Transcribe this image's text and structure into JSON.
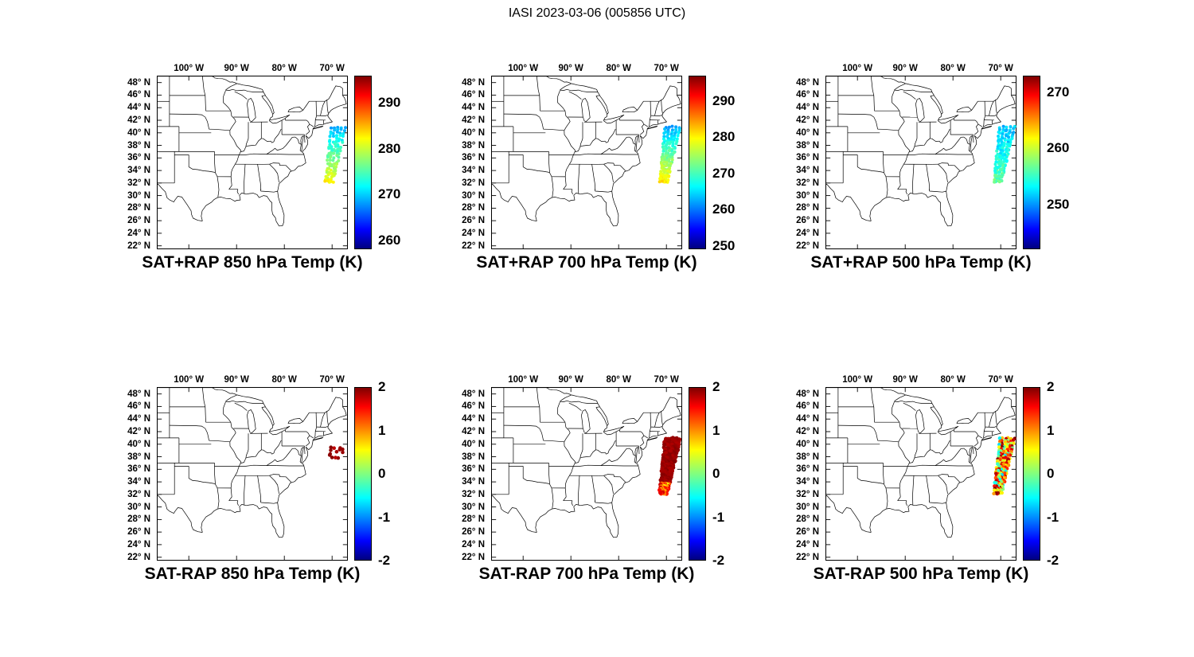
{
  "figure": {
    "title": "IASI 2023-03-06 (005856 UTC)"
  },
  "chart_data": {
    "type": "scatter",
    "title": "IASI 2023-03-06 (005856 UTC)",
    "layout": "2 rows x 3 columns of identical US east-coast map panels, each with a jet colorbar on the right",
    "colormap": "jet",
    "map_extent": {
      "lon_west_degW": 106.7,
      "lon_east_degW": 66.7,
      "lat_south_degN": 21.5,
      "lat_north_degN": 49.1
    },
    "lon_tick_labels": [
      "100° W",
      "90° W",
      "80° W",
      "70° W"
    ],
    "lon_tick_degW": [
      100,
      90,
      80,
      70
    ],
    "lat_tick_labels": [
      "48° N",
      "46° N",
      "44° N",
      "42° N",
      "40° N",
      "38° N",
      "36° N",
      "34° N",
      "32° N",
      "30° N",
      "28° N",
      "26° N",
      "24° N",
      "22° N"
    ],
    "lat_tick_degN": [
      48,
      46,
      44,
      42,
      40,
      38,
      36,
      34,
      32,
      30,
      28,
      26,
      24,
      22
    ],
    "swath": {
      "description": "IASI satellite overpass swath of retrieval points off the US Atlantic coast",
      "top_center_degW_degN": [
        68.7,
        40.9
      ],
      "bottom_center_degW_degN": [
        70.6,
        32.2
      ],
      "halfwidth_top_deg": 1.5,
      "halfwidth_bottom_deg": 0.75,
      "rows": 26,
      "cols": 5
    },
    "panels": [
      {
        "title": "SAT+RAP 850 hPa Temp (K)",
        "row": 0,
        "col": 0,
        "colorbar": {
          "vmin": 258,
          "vmax": 296,
          "ticks": [
            "290",
            "280",
            "270",
            "260"
          ]
        },
        "scatter": {
          "mode": "gradient",
          "value_north": 269.5,
          "value_south": 282,
          "noise": 2.5,
          "keep": 0.78,
          "cols": 5,
          "radius": 2.0,
          "seed": 11
        }
      },
      {
        "title": "SAT+RAP 700 hPa Temp (K)",
        "row": 0,
        "col": 1,
        "colorbar": {
          "vmin": 249,
          "vmax": 297,
          "ticks": [
            "290",
            "280",
            "270",
            "260",
            "250"
          ]
        },
        "scatter": {
          "mode": "gradient",
          "value_north": 263,
          "value_south": 280,
          "noise": 3,
          "keep": 1,
          "cols": 5,
          "radius": 2.0,
          "seed": 23
        }
      },
      {
        "title": "SAT+RAP 500 hPa Temp (K)",
        "row": 0,
        "col": 2,
        "colorbar": {
          "vmin": 242,
          "vmax": 273,
          "ticks": [
            "270",
            "260",
            "250"
          ]
        },
        "scatter": {
          "mode": "gradient",
          "value_north": 251.5,
          "value_south": 256.5,
          "noise": 3.2,
          "keep": 1,
          "cols": 5,
          "radius": 2.0,
          "seed": 37
        }
      },
      {
        "title": "SAT-RAP 850 hPa Temp (K)",
        "row": 1,
        "col": 0,
        "colorbar": {
          "vmin": -2,
          "vmax": 2,
          "ticks": [
            "2",
            "1",
            "0",
            "-1",
            "-2"
          ]
        },
        "scatter": {
          "mode": "constant",
          "value": 1.85,
          "noise": 0.25,
          "keep": 0.4,
          "cols": 5,
          "radius": 2.3,
          "seed": 51,
          "lat_min": 37.6,
          "lat_max": 39.5
        }
      },
      {
        "title": "SAT-RAP 700 hPa Temp (K)",
        "row": 1,
        "col": 1,
        "colorbar": {
          "vmin": -2,
          "vmax": 2,
          "ticks": [
            "2",
            "1",
            "0",
            "-1",
            "-2"
          ]
        },
        "scatter": {
          "mode": "constant",
          "value": 1.9,
          "noise": 0.18,
          "keep": 1,
          "cols": 7,
          "radius": 2.6,
          "seed": 67,
          "tail_t": 0.8,
          "tail_base": 0.5,
          "tail_spread": 1.2
        }
      },
      {
        "title": "SAT-RAP 500 hPa Temp (K)",
        "row": 1,
        "col": 2,
        "colorbar": {
          "vmin": -2,
          "vmax": 2,
          "ticks": [
            "2",
            "1",
            "0",
            "-1",
            "-2"
          ]
        },
        "scatter": {
          "mode": "random",
          "base": -0.7,
          "spread": 2.7,
          "power": 0.75,
          "keep": 1,
          "cols": 6,
          "radius": 2.2,
          "seed": 83
        }
      }
    ]
  }
}
